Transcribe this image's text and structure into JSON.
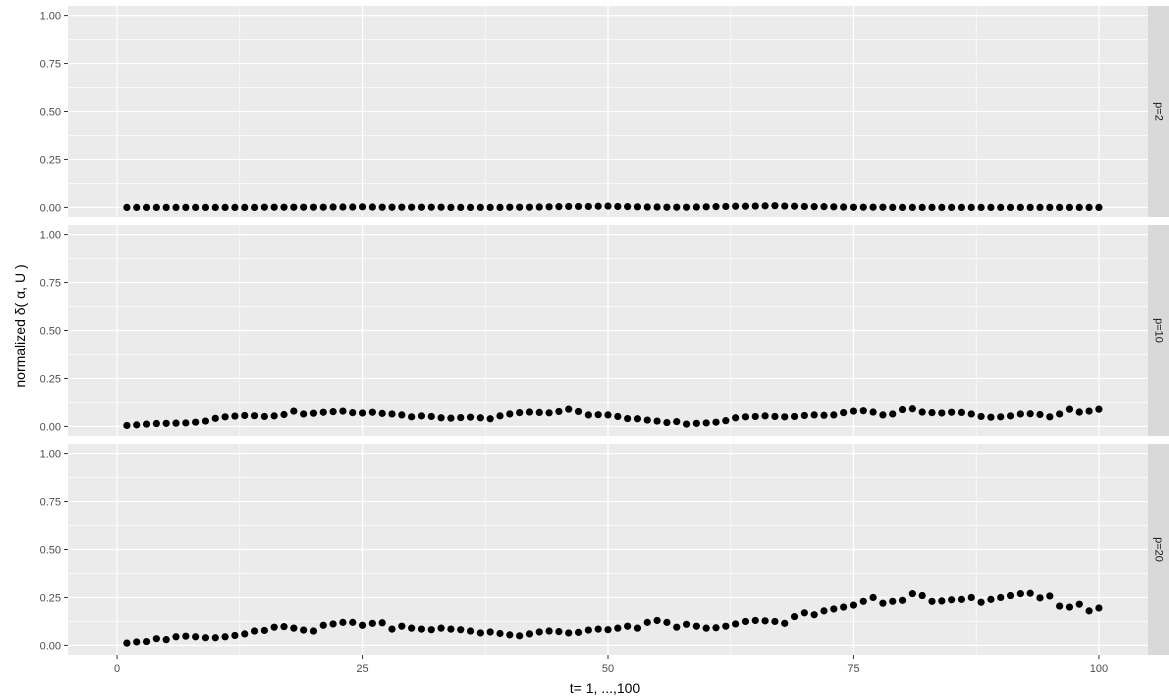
{
  "chart_data": {
    "type": "scatter",
    "xlabel": "t= 1, ...,100",
    "ylabel": "normalized δ( α, U )",
    "xlim": [
      -5,
      105
    ],
    "ylim": [
      -0.05,
      1.05
    ],
    "x_ticks": [
      0,
      25,
      50,
      75,
      100
    ],
    "x_tick_labels": [
      "0",
      "25",
      "50",
      "75",
      "100"
    ],
    "y_ticks": [
      0,
      0.25,
      0.5,
      0.75,
      1
    ],
    "y_tick_labels": [
      "0.00",
      "0.25",
      "0.50",
      "0.75",
      "1.00"
    ],
    "grid": true,
    "point_color": "#000000",
    "panel_background": "#ebebeb",
    "strip_background": "#d9d9d9",
    "facets": [
      {
        "label": "p=2",
        "x": [
          1,
          2,
          3,
          4,
          5,
          6,
          7,
          8,
          9,
          10,
          11,
          12,
          13,
          14,
          15,
          16,
          17,
          18,
          19,
          20,
          21,
          22,
          23,
          24,
          25,
          26,
          27,
          28,
          29,
          30,
          31,
          32,
          33,
          34,
          35,
          36,
          37,
          38,
          39,
          40,
          41,
          42,
          43,
          44,
          45,
          46,
          47,
          48,
          49,
          50,
          51,
          52,
          53,
          54,
          55,
          56,
          57,
          58,
          59,
          60,
          61,
          62,
          63,
          64,
          65,
          66,
          67,
          68,
          69,
          70,
          71,
          72,
          73,
          74,
          75,
          76,
          77,
          78,
          79,
          80,
          81,
          82,
          83,
          84,
          85,
          86,
          87,
          88,
          89,
          90,
          91,
          92,
          93,
          94,
          95,
          96,
          97,
          98,
          99,
          100
        ],
        "values": [
          0.0,
          0.0,
          0.0,
          0.0,
          0.0,
          0.0,
          0.0,
          0.0,
          0.0,
          0.0,
          0.0,
          0.0,
          0.0,
          0.0,
          0.001,
          0.001,
          0.001,
          0.001,
          0.001,
          0.001,
          0.001,
          0.002,
          0.002,
          0.002,
          0.003,
          0.002,
          0.001,
          0.001,
          0.001,
          0.001,
          0.001,
          0.001,
          0.001,
          0.0,
          0.0,
          0.0,
          0.0,
          0.0,
          0.0,
          0.001,
          0.001,
          0.001,
          0.002,
          0.003,
          0.004,
          0.005,
          0.005,
          0.005,
          0.006,
          0.007,
          0.005,
          0.004,
          0.003,
          0.002,
          0.002,
          0.001,
          0.001,
          0.001,
          0.002,
          0.003,
          0.004,
          0.005,
          0.006,
          0.006,
          0.007,
          0.008,
          0.009,
          0.007,
          0.006,
          0.005,
          0.004,
          0.004,
          0.003,
          0.002,
          0.001,
          0.001,
          0.001,
          0.001,
          0.0,
          0.0,
          0.0,
          0.0,
          0.0,
          0.0,
          0.0,
          0.0,
          0.0,
          0.0,
          0.0,
          0.0,
          0.0,
          0.0,
          0.0,
          0.0,
          0.0,
          0.0,
          0.0,
          0.0,
          0.0,
          0.0
        ]
      },
      {
        "label": "p=10",
        "x": [
          1,
          2,
          3,
          4,
          5,
          6,
          7,
          8,
          9,
          10,
          11,
          12,
          13,
          14,
          15,
          16,
          17,
          18,
          19,
          20,
          21,
          22,
          23,
          24,
          25,
          26,
          27,
          28,
          29,
          30,
          31,
          32,
          33,
          34,
          35,
          36,
          37,
          38,
          39,
          40,
          41,
          42,
          43,
          44,
          45,
          46,
          47,
          48,
          49,
          50,
          51,
          52,
          53,
          54,
          55,
          56,
          57,
          58,
          59,
          60,
          61,
          62,
          63,
          64,
          65,
          66,
          67,
          68,
          69,
          70,
          71,
          72,
          73,
          74,
          75,
          76,
          77,
          78,
          79,
          80,
          81,
          82,
          83,
          84,
          85,
          86,
          87,
          88,
          89,
          90,
          91,
          92,
          93,
          94,
          95,
          96,
          97,
          98,
          99,
          100
        ],
        "values": [
          0.005,
          0.008,
          0.012,
          0.015,
          0.016,
          0.017,
          0.018,
          0.022,
          0.028,
          0.042,
          0.05,
          0.054,
          0.057,
          0.056,
          0.052,
          0.055,
          0.062,
          0.08,
          0.065,
          0.069,
          0.074,
          0.077,
          0.08,
          0.072,
          0.07,
          0.074,
          0.068,
          0.065,
          0.06,
          0.05,
          0.055,
          0.052,
          0.045,
          0.043,
          0.046,
          0.048,
          0.045,
          0.04,
          0.055,
          0.065,
          0.072,
          0.075,
          0.073,
          0.071,
          0.078,
          0.09,
          0.078,
          0.06,
          0.061,
          0.06,
          0.052,
          0.041,
          0.04,
          0.033,
          0.028,
          0.02,
          0.025,
          0.012,
          0.016,
          0.018,
          0.022,
          0.03,
          0.045,
          0.05,
          0.052,
          0.055,
          0.052,
          0.05,
          0.052,
          0.057,
          0.06,
          0.058,
          0.06,
          0.072,
          0.08,
          0.082,
          0.075,
          0.06,
          0.065,
          0.088,
          0.092,
          0.075,
          0.072,
          0.07,
          0.074,
          0.073,
          0.065,
          0.052,
          0.048,
          0.05,
          0.055,
          0.065,
          0.066,
          0.062,
          0.05,
          0.065,
          0.09,
          0.075,
          0.08,
          0.09
        ]
      },
      {
        "label": "p=20",
        "x": [
          1,
          2,
          3,
          4,
          5,
          6,
          7,
          8,
          9,
          10,
          11,
          12,
          13,
          14,
          15,
          16,
          17,
          18,
          19,
          20,
          21,
          22,
          23,
          24,
          25,
          26,
          27,
          28,
          29,
          30,
          31,
          32,
          33,
          34,
          35,
          36,
          37,
          38,
          39,
          40,
          41,
          42,
          43,
          44,
          45,
          46,
          47,
          48,
          49,
          50,
          51,
          52,
          53,
          54,
          55,
          56,
          57,
          58,
          59,
          60,
          61,
          62,
          63,
          64,
          65,
          66,
          67,
          68,
          69,
          70,
          71,
          72,
          73,
          74,
          75,
          76,
          77,
          78,
          79,
          80,
          81,
          82,
          83,
          84,
          85,
          86,
          87,
          88,
          89,
          90,
          91,
          92,
          93,
          94,
          95,
          96,
          97,
          98,
          99,
          100
        ],
        "values": [
          0.012,
          0.018,
          0.02,
          0.035,
          0.03,
          0.045,
          0.048,
          0.045,
          0.04,
          0.04,
          0.045,
          0.052,
          0.06,
          0.075,
          0.078,
          0.095,
          0.098,
          0.09,
          0.08,
          0.075,
          0.105,
          0.112,
          0.12,
          0.12,
          0.105,
          0.115,
          0.118,
          0.085,
          0.1,
          0.09,
          0.085,
          0.082,
          0.09,
          0.085,
          0.082,
          0.075,
          0.065,
          0.07,
          0.062,
          0.055,
          0.05,
          0.06,
          0.07,
          0.075,
          0.072,
          0.065,
          0.068,
          0.08,
          0.085,
          0.082,
          0.09,
          0.1,
          0.09,
          0.12,
          0.13,
          0.12,
          0.095,
          0.11,
          0.1,
          0.09,
          0.092,
          0.1,
          0.112,
          0.125,
          0.13,
          0.128,
          0.125,
          0.115,
          0.15,
          0.17,
          0.16,
          0.18,
          0.19,
          0.2,
          0.21,
          0.23,
          0.25,
          0.22,
          0.23,
          0.235,
          0.27,
          0.26,
          0.23,
          0.232,
          0.238,
          0.24,
          0.25,
          0.225,
          0.24,
          0.25,
          0.26,
          0.27,
          0.272,
          0.248,
          0.258,
          0.205,
          0.2,
          0.215,
          0.18,
          0.195
        ]
      }
    ]
  }
}
